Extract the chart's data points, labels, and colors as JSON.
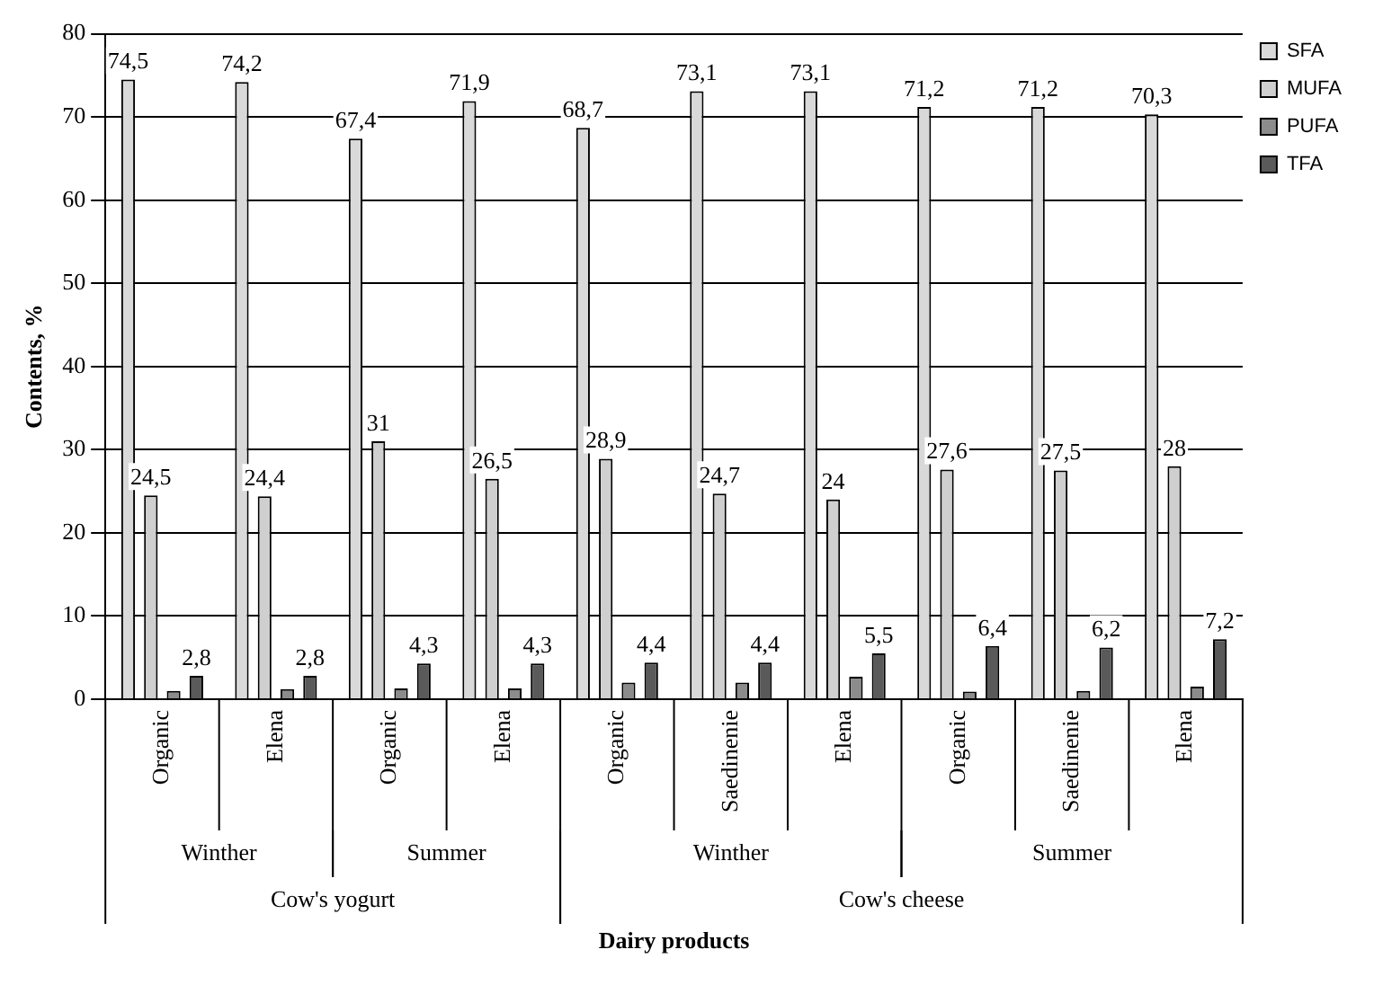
{
  "chart_data": {
    "type": "bar",
    "xlabel": "Dairy products",
    "ylabel": "Contents, %",
    "categories": [
      "Organic",
      "Elena",
      "Organic",
      "Elena",
      "Organic",
      "Saedinenie",
      "Elena",
      "Organic",
      "Saedinenie",
      "Elena"
    ],
    "annotations": [
      "Winther",
      "Summer",
      "Winther",
      "Summer",
      "Cow's yogurt",
      "Cow's cheese"
    ],
    "series": [
      {
        "name": "SFA",
        "color": "#d9d9d9",
        "values": [
          74.5,
          74.2,
          67.4,
          71.9,
          68.7,
          73.1,
          73.1,
          71.2,
          71.2,
          70.3
        ],
        "value_labels": [
          "74,5",
          "74,2",
          "67,4",
          "71,9",
          "68,7",
          "73,1",
          "73,1",
          "71,2",
          "71,2",
          "70,3"
        ]
      },
      {
        "name": "MUFA",
        "color": "#cfcfcf",
        "values": [
          24.5,
          24.4,
          31,
          26.5,
          28.9,
          24.7,
          24,
          27.6,
          27.5,
          28
        ],
        "value_labels": [
          "24,5",
          "24,4",
          "31",
          "26,5",
          "28,9",
          "24,7",
          "24",
          "27,6",
          "27,5",
          "28"
        ]
      },
      {
        "name": "PUFA",
        "color": "#8c8c8c",
        "values": [
          1.0,
          1.2,
          1.3,
          1.3,
          2.0,
          2.0,
          2.7,
          0.9,
          1.0,
          1.5
        ]
      },
      {
        "name": "TFA",
        "color": "#5a5a5a",
        "values": [
          2.8,
          2.8,
          4.3,
          4.3,
          4.4,
          4.4,
          5.5,
          6.4,
          6.2,
          7.2
        ],
        "value_labels": [
          "2,8",
          "2,8",
          "4,3",
          "4,3",
          "4,4",
          "4,4",
          "5,5",
          "6,4",
          "6,2",
          "7,2"
        ]
      }
    ],
    "ylim": [
      0,
      80
    ],
    "yticks": [
      0,
      10,
      20,
      30,
      40,
      50,
      60,
      70,
      80
    ],
    "grid": "y",
    "legend": "top right"
  }
}
